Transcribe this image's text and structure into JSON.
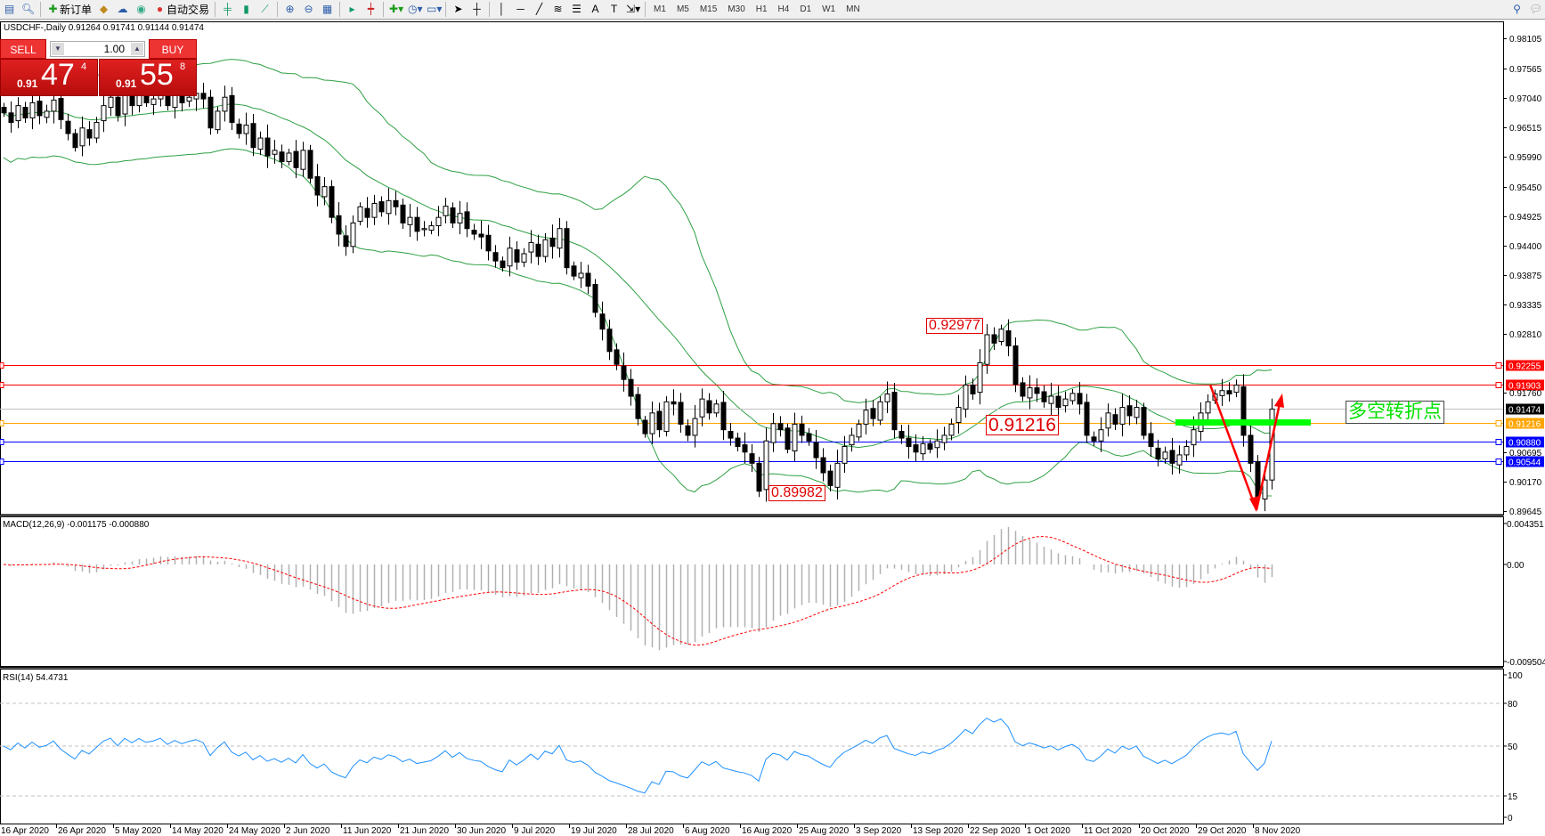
{
  "toolbar": {
    "new_order": "新订单",
    "auto_trading": "自动交易",
    "timeframes": [
      "M1",
      "M5",
      "M15",
      "M30",
      "H1",
      "H4",
      "D1",
      "W1",
      "MN"
    ],
    "icons": [
      "new-window-icon",
      "zoom-window-icon",
      "new-order-icon",
      "gold-icon",
      "market-watch-icon",
      "signal-icon",
      "auto-trading-icon",
      "bar-chart-icon",
      "candlestick-icon",
      "line-chart-icon",
      "zoom-in-icon",
      "zoom-out-icon",
      "tile-icon",
      "scroll-icon",
      "shift-icon",
      "indicators-icon",
      "periods-icon",
      "templates-icon",
      "cursor-icon",
      "crosshair-icon",
      "vertical-line-icon",
      "horizontal-line-icon",
      "trendline-icon",
      "fibonacci-icon",
      "grid-lines-icon",
      "text-icon",
      "text-label-icon",
      "arrows-icon"
    ]
  },
  "chart_header": "USDCHF-,Daily  0.91264 0.91741 0.91144 0.91474",
  "trade_panel": {
    "sell_label": "SELL",
    "buy_label": "BUY",
    "lot": "1.00",
    "sell_prefix": "0.91",
    "sell_big": "47",
    "sell_sup": "4",
    "buy_prefix": "0.91",
    "buy_big": "55",
    "buy_sup": "8"
  },
  "chart_data": [
    {
      "type": "candlestick",
      "symbol": "USDCHF-",
      "timeframe": "Daily",
      "ylim": [
        0.89645,
        0.98105
      ],
      "y_ticks": [
        "0.98105",
        "0.97565",
        "0.97040",
        "0.96515",
        "0.95990",
        "0.95450",
        "0.94925",
        "0.94400",
        "0.93875",
        "0.93335",
        "0.92810",
        "0.91760",
        "0.90695",
        "0.90170",
        "0.89645"
      ],
      "x_ticks": [
        "16 Apr 2020",
        "26 Apr 2020",
        "5 May 2020",
        "14 May 2020",
        "24 May 2020",
        "2 Jun 2020",
        "11 Jun 2020",
        "21 Jun 2020",
        "30 Jun 2020",
        "9 Jul 2020",
        "19 Jul 2020",
        "28 Jul 2020",
        "6 Aug 2020",
        "16 Aug 2020",
        "25 Aug 2020",
        "3 Sep 2020",
        "13 Sep 2020",
        "22 Sep 2020",
        "1 Oct 2020",
        "11 Oct 2020",
        "20 Oct 2020",
        "29 Oct 2020",
        "8 Nov 2020"
      ],
      "closes": [
        0.9677,
        0.966,
        0.969,
        0.9668,
        0.9695,
        0.9672,
        0.968,
        0.97,
        0.9665,
        0.964,
        0.9615,
        0.965,
        0.9632,
        0.966,
        0.969,
        0.9705,
        0.9672,
        0.971,
        0.969,
        0.9712,
        0.9695,
        0.9702,
        0.9715,
        0.969,
        0.9708,
        0.9695,
        0.9705,
        0.9712,
        0.9702,
        0.965,
        0.968,
        0.9705,
        0.966,
        0.964,
        0.9655,
        0.9615,
        0.9632,
        0.96,
        0.961,
        0.959,
        0.9605,
        0.9579,
        0.961,
        0.956,
        0.953,
        0.9545,
        0.949,
        0.946,
        0.9438,
        0.948,
        0.9509,
        0.949,
        0.9515,
        0.95,
        0.952,
        0.9509,
        0.948,
        0.949,
        0.9465,
        0.947,
        0.9475,
        0.949,
        0.951,
        0.948,
        0.9497,
        0.947,
        0.946,
        0.9455,
        0.943,
        0.9412,
        0.94,
        0.9435,
        0.941,
        0.9425,
        0.9445,
        0.942,
        0.945,
        0.9438,
        0.947,
        0.94,
        0.9385,
        0.939,
        0.9367,
        0.932,
        0.929,
        0.925,
        0.9227,
        0.92,
        0.917,
        0.913,
        0.9103,
        0.914,
        0.911,
        0.916,
        0.9156,
        0.912,
        0.91,
        0.913,
        0.9165,
        0.914,
        0.9156,
        0.911,
        0.9095,
        0.908,
        0.907,
        0.905,
        0.9,
        0.909,
        0.9121,
        0.911,
        0.9075,
        0.912,
        0.91,
        0.909,
        0.906,
        0.9033,
        0.901,
        0.905,
        0.908,
        0.91,
        0.912,
        0.9145,
        0.913,
        0.916,
        0.9174,
        0.911,
        0.9095,
        0.908,
        0.907,
        0.9085,
        0.9075,
        0.909,
        0.91,
        0.912,
        0.915,
        0.919,
        0.9174,
        0.923,
        0.928,
        0.9265,
        0.929,
        0.926,
        0.9191,
        0.917,
        0.9185,
        0.9175,
        0.916,
        0.917,
        0.915,
        0.9165,
        0.9175,
        0.9156,
        0.91,
        0.909,
        0.911,
        0.914,
        0.912,
        0.915,
        0.9135,
        0.915,
        0.91,
        0.908,
        0.9058,
        0.907,
        0.905,
        0.9065,
        0.908,
        0.911,
        0.914,
        0.916,
        0.9174,
        0.918,
        0.9174,
        0.919,
        0.91,
        0.905,
        0.8989,
        0.902,
        0.9147
      ],
      "indicators": [
        "Bollinger Bands"
      ],
      "hlines": [
        {
          "price": "0.92255",
          "color": "#ff0000"
        },
        {
          "price": "0.91903",
          "color": "#ff0000"
        },
        {
          "price": "0.91474",
          "color": "#000000",
          "line": "#c0c0c0"
        },
        {
          "price": "0.91216",
          "color": "#ffa500"
        },
        {
          "price": "0.90880",
          "color": "#0000ff"
        },
        {
          "price": "0.90544",
          "color": "#0000ff"
        }
      ],
      "annotations": {
        "high": "0.92977",
        "pivot": "0.91216",
        "low": "0.89982",
        "turning_point": "多空转折点"
      }
    },
    {
      "type": "macd",
      "label": "MACD(12,26,9) -0.001175 -0.000880",
      "y_ticks": [
        "0.004351",
        "0.00",
        "-0.009504"
      ],
      "ylim": [
        -0.009504,
        0.004351
      ]
    },
    {
      "type": "rsi",
      "label": "RSI(14) 54.4731",
      "y_ticks": [
        "100",
        "80",
        "50",
        "15",
        "0"
      ],
      "ylim": [
        0,
        100
      ]
    }
  ],
  "colors": {
    "bands": "#2ea043",
    "macd_signal": "#ff0000",
    "macd_hist": "#b0b0b0",
    "rsi": "#1e90ff",
    "arrow": "#ff0000",
    "green_bar": "#00ff00"
  }
}
